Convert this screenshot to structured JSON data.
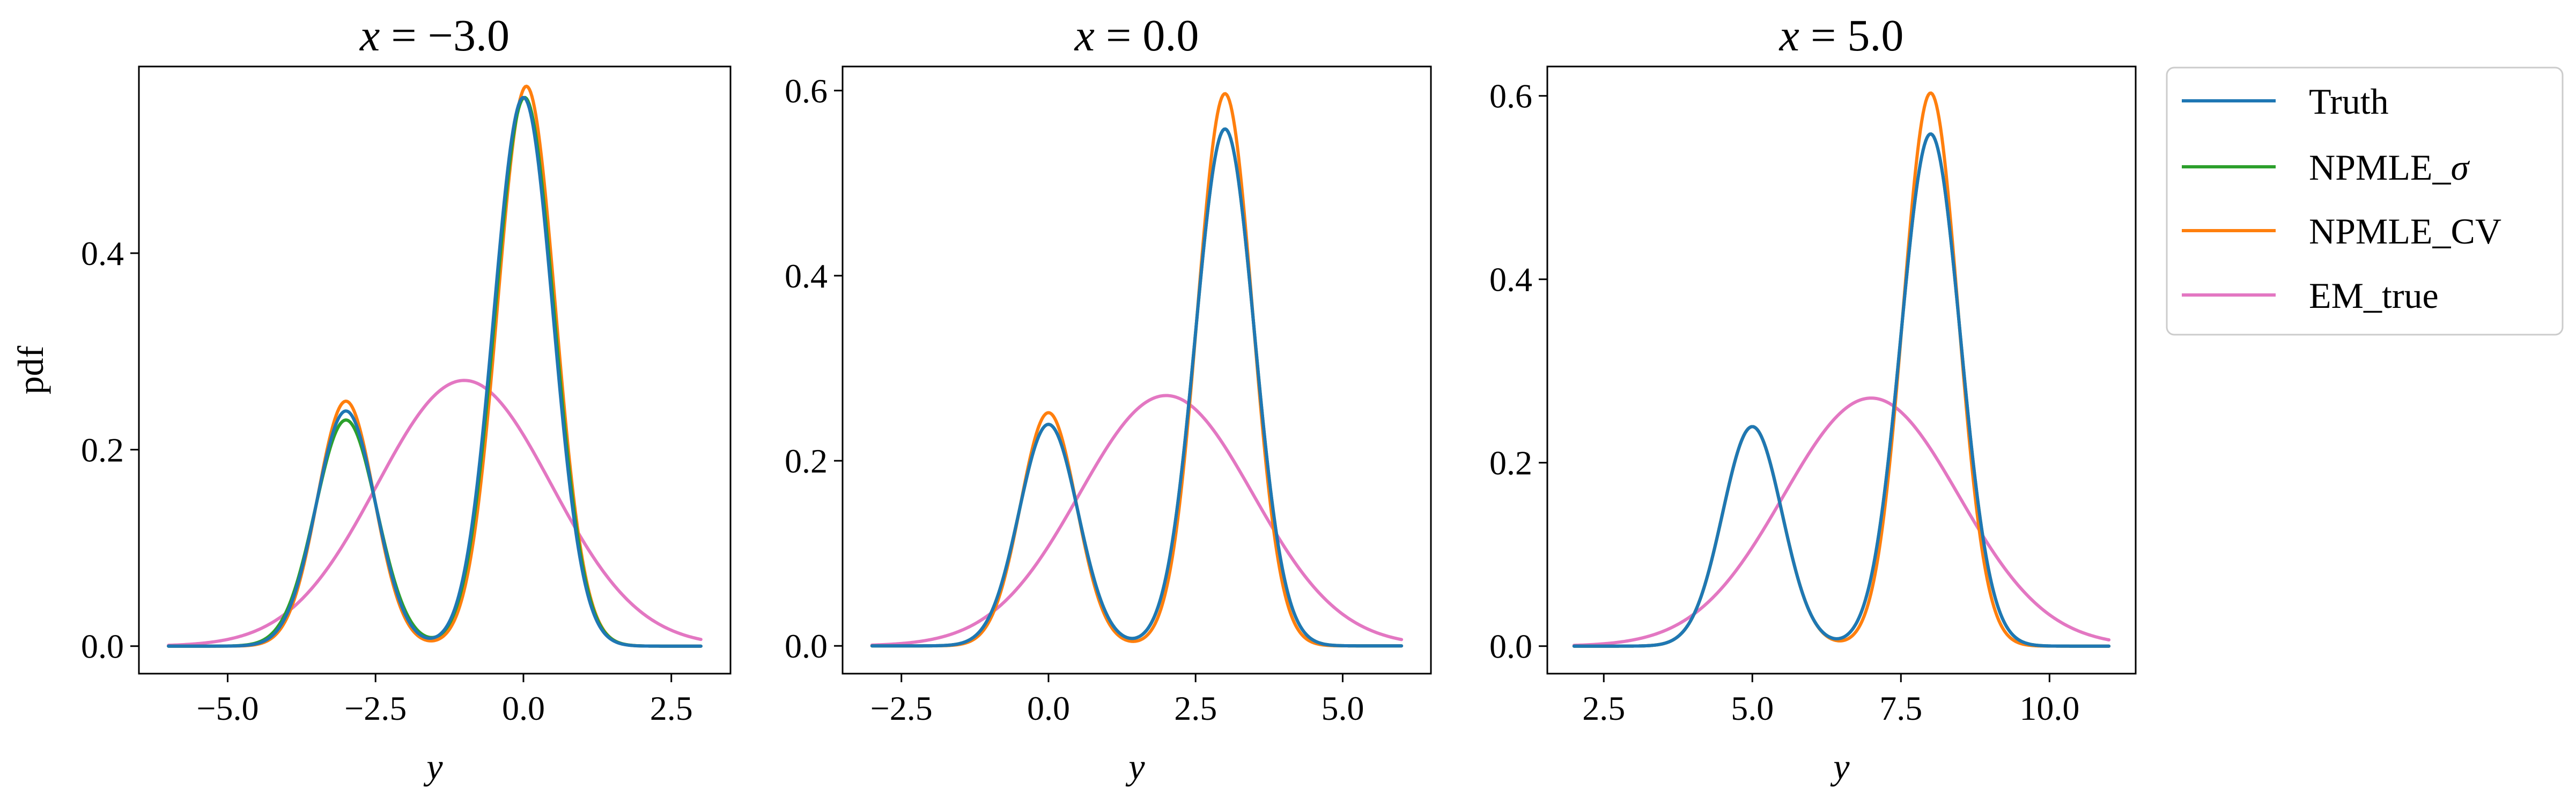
{
  "chart_data": [
    {
      "type": "line",
      "title": "x = −3.0",
      "title_prefix": "x",
      "title_value": "−3.0",
      "xlabel": "y",
      "ylabel": "pdf",
      "xlim": [
        -6.5,
        3.5
      ],
      "ylim": [
        -0.028,
        0.59
      ],
      "xticks": [
        -5.0,
        -2.5,
        0.0,
        2.5
      ],
      "xtick_labels": [
        "−5.0",
        "−2.5",
        "0.0",
        "2.5"
      ],
      "yticks": [
        0.0,
        0.2,
        0.4
      ],
      "ytick_labels": [
        "0.0",
        "0.2",
        "0.4"
      ],
      "x_range": [
        -6.0,
        3.0
      ],
      "series": [
        {
          "name": "Truth",
          "color": "#1f77b4",
          "components": [
            {
              "w": 0.3,
              "mu": -3.0,
              "sd": 0.5
            },
            {
              "w": 0.7,
              "mu": 0.0,
              "sd": 0.5
            }
          ]
        },
        {
          "name": "NPMLE_σ",
          "color": "#2ca02c",
          "components": [
            {
              "w": 0.3,
              "mu": -3.0,
              "sd": 0.52
            },
            {
              "w": 0.7,
              "mu": 0.02,
              "sd": 0.5
            }
          ]
        },
        {
          "name": "NPMLE_CV",
          "color": "#ff7f0e",
          "components": [
            {
              "w": 0.3,
              "mu": -3.0,
              "sd": 0.48
            },
            {
              "w": 0.7,
              "mu": 0.05,
              "sd": 0.49
            }
          ]
        },
        {
          "name": "EM_true",
          "color": "#e377c2",
          "components": [
            {
              "w": 1.0,
              "mu": -1.0,
              "sd": 1.475
            }
          ]
        }
      ]
    },
    {
      "type": "line",
      "title": "x = 0.0",
      "title_prefix": "x",
      "title_value": "0.0",
      "xlabel": "y",
      "ylabel": "",
      "xlim": [
        -3.5,
        6.5
      ],
      "ylim": [
        -0.03,
        0.626
      ],
      "xticks": [
        -2.5,
        0.0,
        2.5,
        5.0
      ],
      "xtick_labels": [
        "−2.5",
        "0.0",
        "2.5",
        "5.0"
      ],
      "yticks": [
        0.0,
        0.2,
        0.4,
        0.6
      ],
      "ytick_labels": [
        "0.0",
        "0.2",
        "0.4",
        "0.6"
      ],
      "x_range": [
        -3.0,
        6.0
      ],
      "series": [
        {
          "name": "Truth",
          "color": "#1f77b4",
          "components": [
            {
              "w": 0.3,
              "mu": 0.0,
              "sd": 0.5
            },
            {
              "w": 0.7,
              "mu": 3.0,
              "sd": 0.5
            }
          ]
        },
        {
          "name": "NPMLE_σ",
          "color": "#2ca02c",
          "components": [
            {
              "w": 0.3,
              "mu": 0.0,
              "sd": 0.5
            },
            {
              "w": 0.7,
              "mu": 3.0,
              "sd": 0.5
            }
          ]
        },
        {
          "name": "NPMLE_CV",
          "color": "#ff7f0e",
          "components": [
            {
              "w": 0.3,
              "mu": 0.0,
              "sd": 0.475
            },
            {
              "w": 0.7,
              "mu": 3.0,
              "sd": 0.468
            }
          ]
        },
        {
          "name": "EM_true",
          "color": "#e377c2",
          "components": [
            {
              "w": 1.0,
              "mu": 2.0,
              "sd": 1.475
            }
          ]
        }
      ]
    },
    {
      "type": "line",
      "title": "x = 5.0",
      "title_prefix": "x",
      "title_value": "5.0",
      "xlabel": "y",
      "ylabel": "",
      "xlim": [
        1.55,
        11.45
      ],
      "ylim": [
        -0.03,
        0.632
      ],
      "xticks": [
        2.5,
        5.0,
        7.5,
        10.0
      ],
      "xtick_labels": [
        "2.5",
        "5.0",
        "7.5",
        "10.0"
      ],
      "yticks": [
        0.0,
        0.2,
        0.4,
        0.6
      ],
      "ytick_labels": [
        "0.0",
        "0.2",
        "0.4",
        "0.6"
      ],
      "x_range": [
        2.0,
        11.0
      ],
      "series": [
        {
          "name": "Truth",
          "color": "#1f77b4",
          "components": [
            {
              "w": 0.3,
              "mu": 5.0,
              "sd": 0.5
            },
            {
              "w": 0.7,
              "mu": 8.0,
              "sd": 0.5
            }
          ]
        },
        {
          "name": "NPMLE_σ",
          "color": "#2ca02c",
          "components": [
            {
              "w": 0.3,
              "mu": 5.0,
              "sd": 0.5
            },
            {
              "w": 0.7,
              "mu": 8.0,
              "sd": 0.5
            }
          ]
        },
        {
          "name": "NPMLE_CV",
          "color": "#ff7f0e",
          "components": [
            {
              "w": 0.3,
              "mu": 5.0,
              "sd": 0.5
            },
            {
              "w": 0.7,
              "mu": 8.0,
              "sd": 0.463
            }
          ]
        },
        {
          "name": "EM_true",
          "color": "#e377c2",
          "components": [
            {
              "w": 1.0,
              "mu": 7.0,
              "sd": 1.475
            }
          ]
        }
      ]
    }
  ],
  "legend": {
    "placement": "right",
    "entries": [
      {
        "label": "Truth",
        "color": "#1f77b4"
      },
      {
        "label": "NPMLE_σ",
        "label_base": "NPMLE_",
        "label_symbol": "σ",
        "color": "#2ca02c"
      },
      {
        "label": "NPMLE_CV",
        "color": "#ff7f0e"
      },
      {
        "label": "EM_true",
        "color": "#e377c2"
      }
    ]
  }
}
